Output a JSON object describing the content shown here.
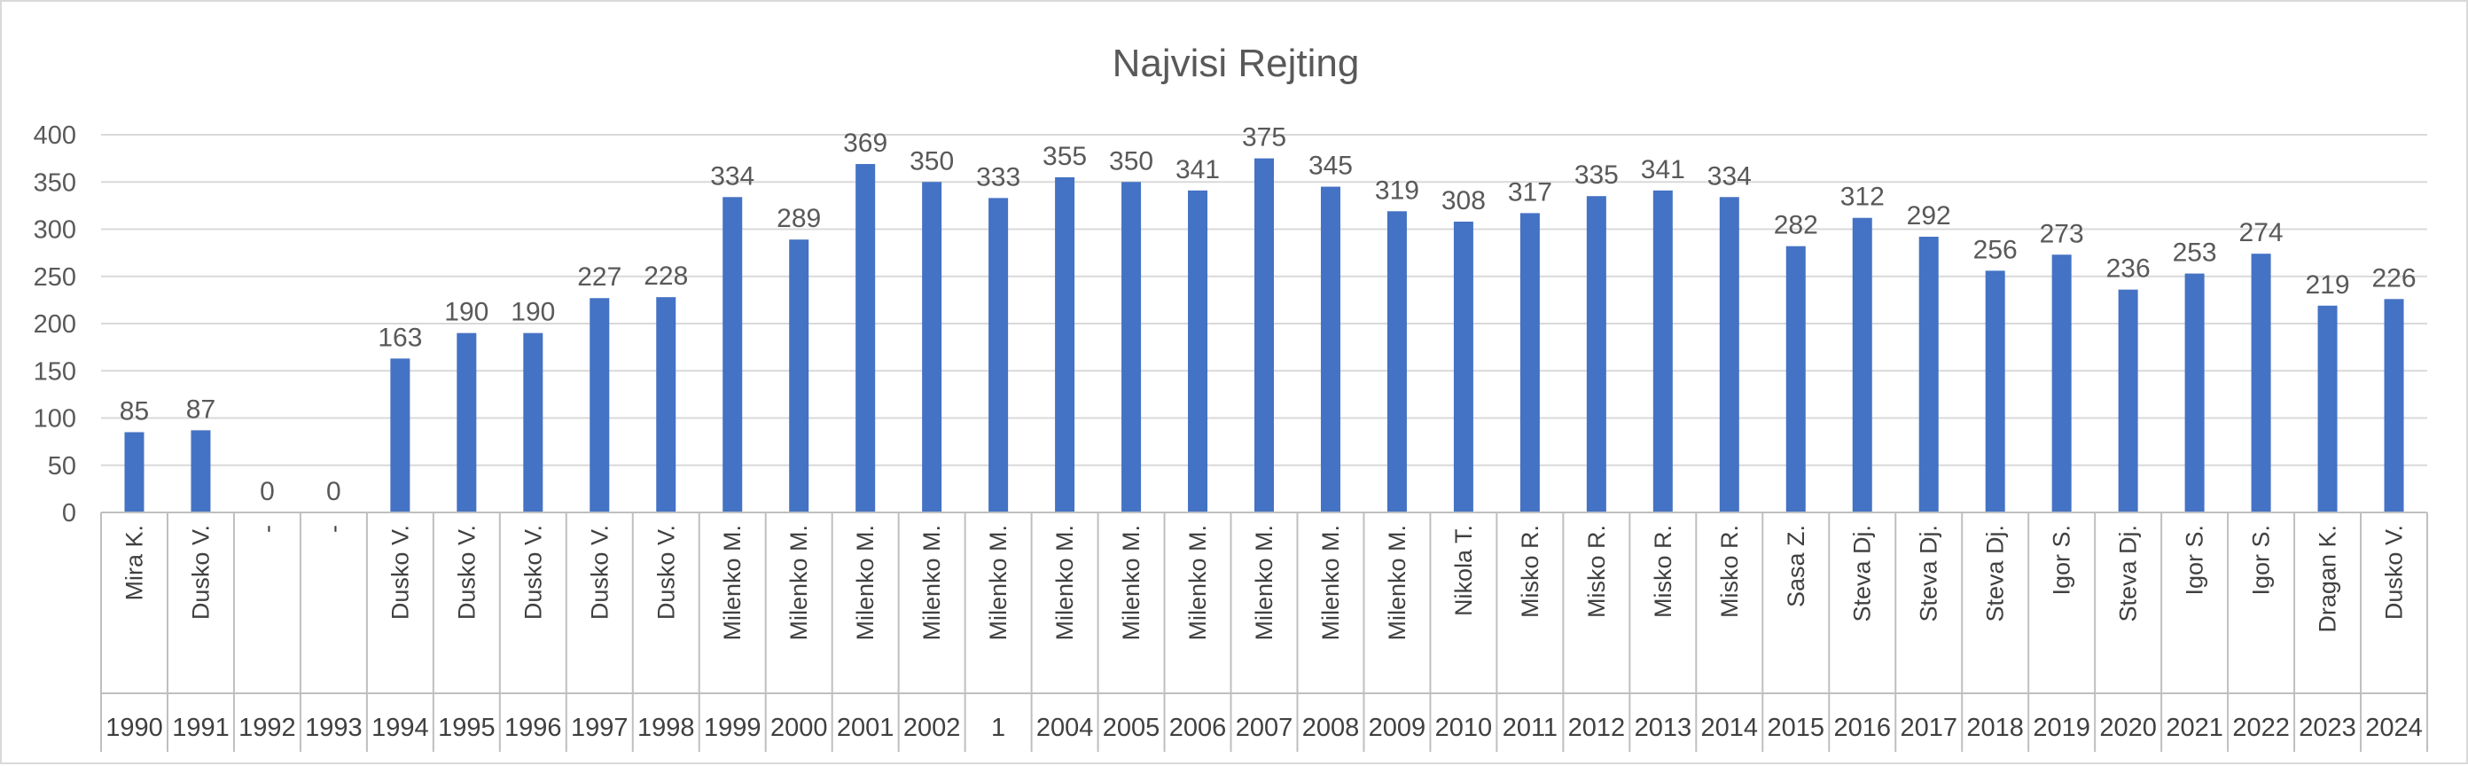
{
  "chart_data": {
    "type": "bar",
    "title": "Najvisi Rejting",
    "ylim": [
      0,
      400
    ],
    "yticks": [
      0,
      50,
      100,
      150,
      200,
      250,
      300,
      350,
      400
    ],
    "grid": true,
    "bar_color": "#4472c4",
    "categories": [
      {
        "name": "Mira K.",
        "year": "1990"
      },
      {
        "name": "Dusko V.",
        "year": "1991"
      },
      {
        "name": "-",
        "year": "1992"
      },
      {
        "name": "-",
        "year": "1993"
      },
      {
        "name": "Dusko V.",
        "year": "1994"
      },
      {
        "name": "Dusko V.",
        "year": "1995"
      },
      {
        "name": "Dusko V.",
        "year": "1996"
      },
      {
        "name": "Dusko V.",
        "year": "1997"
      },
      {
        "name": "Dusko V.",
        "year": "1998"
      },
      {
        "name": "Milenko M.",
        "year": "1999"
      },
      {
        "name": "Milenko M.",
        "year": "2000"
      },
      {
        "name": "Milenko M.",
        "year": "2001"
      },
      {
        "name": "Milenko M.",
        "year": "2002"
      },
      {
        "name": "Milenko M.",
        "year": "1"
      },
      {
        "name": "Milenko M.",
        "year": "2004"
      },
      {
        "name": "Milenko M.",
        "year": "2005"
      },
      {
        "name": "Milenko M.",
        "year": "2006"
      },
      {
        "name": "Milenko M.",
        "year": "2007"
      },
      {
        "name": "Milenko M.",
        "year": "2008"
      },
      {
        "name": "Milenko M.",
        "year": "2009"
      },
      {
        "name": "Nikola T.",
        "year": "2010"
      },
      {
        "name": "Misko R.",
        "year": "2011"
      },
      {
        "name": "Misko R.",
        "year": "2012"
      },
      {
        "name": "Misko R.",
        "year": "2013"
      },
      {
        "name": "Misko R.",
        "year": "2014"
      },
      {
        "name": "Sasa Z.",
        "year": "2015"
      },
      {
        "name": "Steva Dj.",
        "year": "2016"
      },
      {
        "name": "Steva Dj.",
        "year": "2017"
      },
      {
        "name": "Steva Dj.",
        "year": "2018"
      },
      {
        "name": "Igor S.",
        "year": "2019"
      },
      {
        "name": "Steva Dj.",
        "year": "2020"
      },
      {
        "name": "Igor S.",
        "year": "2021"
      },
      {
        "name": "Igor S.",
        "year": "2022"
      },
      {
        "name": "Dragan K.",
        "year": "2023"
      },
      {
        "name": "Dusko V.",
        "year": "2024"
      }
    ],
    "values": [
      85,
      87,
      0,
      0,
      163,
      190,
      190,
      227,
      228,
      334,
      289,
      369,
      350,
      333,
      355,
      350,
      341,
      375,
      345,
      319,
      308,
      317,
      335,
      341,
      334,
      282,
      312,
      292,
      256,
      273,
      236,
      253,
      274,
      219,
      226
    ]
  }
}
